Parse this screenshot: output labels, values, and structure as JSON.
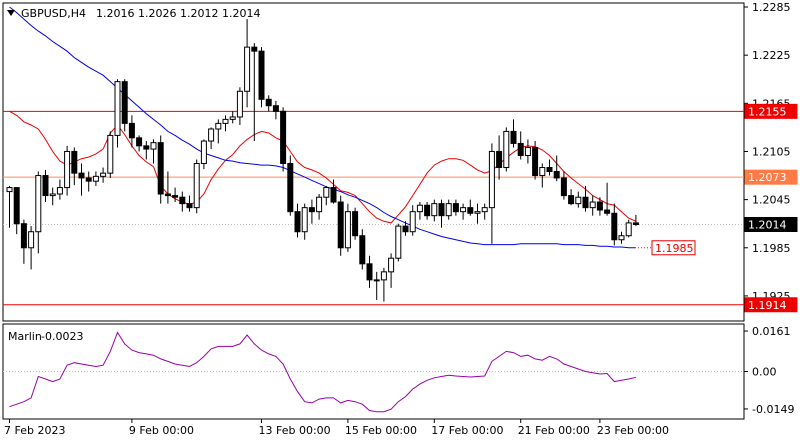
{
  "header": {
    "symbol": "GBPUSD,H4",
    "ohlc": "1.2016 1.2026 1.2012 1.2014",
    "menu_icon": "triangle-down-icon"
  },
  "chart_data": {
    "type": "candlestick",
    "symbol": "GBPUSD",
    "timeframe": "H4",
    "ylim": [
      1.1895,
      1.229
    ],
    "y_ticks": [
      "1.2285",
      "1.2225",
      "1.2165",
      "1.2105",
      "1.2045",
      "1.1985",
      "1.1925"
    ],
    "x_ticks": [
      "7 Feb 2023",
      "9 Feb 00:00",
      "13 Feb 00:00",
      "15 Feb 00:00",
      "17 Feb 00:00",
      "21 Feb 00:00",
      "23 Feb 00:00"
    ],
    "candles": [
      [
        1.2055,
        1.2062,
        1.201,
        1.206
      ],
      [
        1.206,
        1.2058,
        1.2002,
        1.2015
      ],
      [
        1.2015,
        1.202,
        1.1965,
        1.1985
      ],
      [
        1.1985,
        1.2012,
        1.1958,
        1.2005
      ],
      [
        1.2005,
        1.208,
        1.1978,
        1.2075
      ],
      [
        1.2075,
        1.2082,
        1.2042,
        1.205
      ],
      [
        1.205,
        1.206,
        1.2038,
        1.2052
      ],
      [
        1.2052,
        1.207,
        1.2045,
        1.206
      ],
      [
        1.206,
        1.2112,
        1.205,
        1.2105
      ],
      [
        1.2105,
        1.211,
        1.2063,
        1.2078
      ],
      [
        1.2078,
        1.209,
        1.205,
        1.2072
      ],
      [
        1.2072,
        1.208,
        1.2055,
        1.2068
      ],
      [
        1.2068,
        1.208,
        1.2062,
        1.2074
      ],
      [
        1.2074,
        1.2085,
        1.2066,
        1.2078
      ],
      [
        1.2078,
        1.213,
        1.2072,
        1.2125
      ],
      [
        1.2125,
        1.2195,
        1.211,
        1.2192
      ],
      [
        1.2192,
        1.2195,
        1.213,
        1.214
      ],
      [
        1.214,
        1.215,
        1.211,
        1.2122
      ],
      [
        1.2122,
        1.2125,
        1.2105,
        1.2112
      ],
      [
        1.2112,
        1.2118,
        1.2095,
        1.2108
      ],
      [
        1.2108,
        1.212,
        1.209,
        1.2116
      ],
      [
        1.2116,
        1.2125,
        1.204,
        1.2052
      ],
      [
        1.2052,
        1.208,
        1.204,
        1.205
      ],
      [
        1.205,
        1.206,
        1.2042,
        1.2048
      ],
      [
        1.2048,
        1.2055,
        1.203,
        1.204
      ],
      [
        1.204,
        1.205,
        1.203,
        1.2035
      ],
      [
        1.2035,
        1.2095,
        1.2028,
        1.209
      ],
      [
        1.209,
        1.212,
        1.2083,
        1.2118
      ],
      [
        1.2118,
        1.2135,
        1.2108,
        1.2133
      ],
      [
        1.2133,
        1.2145,
        1.2115,
        1.214
      ],
      [
        1.214,
        1.215,
        1.213,
        1.2145
      ],
      [
        1.2145,
        1.2155,
        1.214,
        1.2148
      ],
      [
        1.2148,
        1.2185,
        1.2138,
        1.218
      ],
      [
        1.218,
        1.227,
        1.216,
        1.2235
      ],
      [
        1.2235,
        1.224,
        1.2118,
        1.223
      ],
      [
        1.223,
        1.2235,
        1.216,
        1.217
      ],
      [
        1.217,
        1.2175,
        1.2155,
        1.2162
      ],
      [
        1.2162,
        1.2168,
        1.2145,
        1.2155
      ],
      [
        1.2155,
        1.216,
        1.208,
        1.209
      ],
      [
        1.209,
        1.21,
        1.2025,
        1.203
      ],
      [
        1.203,
        1.204,
        1.1998,
        1.2005
      ],
      [
        1.2005,
        1.204,
        1.1995,
        1.2035
      ],
      [
        1.2035,
        1.2045,
        1.2015,
        1.203
      ],
      [
        1.203,
        1.2052,
        1.202,
        1.2048
      ],
      [
        1.2048,
        1.2062,
        1.2038,
        1.206
      ],
      [
        1.206,
        1.207,
        1.204,
        1.2042
      ],
      [
        1.2042,
        1.205,
        1.1975,
        1.1985
      ],
      [
        1.1985,
        1.204,
        1.198,
        1.203
      ],
      [
        1.203,
        1.2035,
        1.1995,
        1.2
      ],
      [
        1.2,
        1.2008,
        1.1958,
        1.1965
      ],
      [
        1.1965,
        1.1975,
        1.1935,
        1.1945
      ],
      [
        1.1945,
        1.1955,
        1.192,
        1.1945
      ],
      [
        1.1945,
        1.196,
        1.1918,
        1.1955
      ],
      [
        1.1955,
        1.1978,
        1.1935,
        1.1972
      ],
      [
        1.1972,
        1.2015,
        1.1968,
        1.2012
      ],
      [
        1.2012,
        1.2018,
        1.2,
        1.2005
      ],
      [
        1.2005,
        1.2038,
        1.2,
        1.203
      ],
      [
        1.203,
        1.2042,
        1.202,
        1.2038
      ],
      [
        1.2038,
        1.2042,
        1.202,
        1.2025
      ],
      [
        1.2025,
        1.2045,
        1.2018,
        1.204
      ],
      [
        1.204,
        1.2045,
        1.201,
        1.2025
      ],
      [
        1.2025,
        1.2045,
        1.202,
        1.204
      ],
      [
        1.204,
        1.2045,
        1.2025,
        1.203
      ],
      [
        1.203,
        1.204,
        1.202,
        1.2035
      ],
      [
        1.2035,
        1.2045,
        1.2025,
        1.2028
      ],
      [
        1.2028,
        1.204,
        1.2015,
        1.203
      ],
      [
        1.203,
        1.204,
        1.202,
        1.2035
      ],
      [
        1.2035,
        1.2115,
        1.199,
        1.2105
      ],
      [
        1.2105,
        1.2125,
        1.207,
        1.2085
      ],
      [
        1.2085,
        1.2135,
        1.208,
        1.213
      ],
      [
        1.213,
        1.2145,
        1.211,
        1.2115
      ],
      [
        1.2115,
        1.213,
        1.2095,
        1.21
      ],
      [
        1.21,
        1.212,
        1.209,
        1.211
      ],
      [
        1.211,
        1.2118,
        1.207,
        1.2075
      ],
      [
        1.2075,
        1.209,
        1.206,
        1.2085
      ],
      [
        1.2085,
        1.2095,
        1.2075,
        1.208
      ],
      [
        1.208,
        1.21,
        1.2068,
        1.2072
      ],
      [
        1.2072,
        1.208,
        1.2045,
        1.205
      ],
      [
        1.205,
        1.2058,
        1.2038,
        1.204
      ],
      [
        1.204,
        1.2055,
        1.2035,
        1.2048
      ],
      [
        1.2048,
        1.2062,
        1.203,
        1.2035
      ],
      [
        1.2035,
        1.205,
        1.2025,
        1.2042
      ],
      [
        1.2042,
        1.2048,
        1.2025,
        1.2032
      ],
      [
        1.2032,
        1.2066,
        1.2025,
        1.2028
      ],
      [
        1.2028,
        1.204,
        1.1988,
        1.1995
      ],
      [
        1.1995,
        1.2005,
        1.199,
        1.2
      ],
      [
        1.2,
        1.202,
        1.1998,
        1.2016
      ],
      [
        1.2016,
        1.2026,
        1.2012,
        1.2014
      ]
    ],
    "moving_averages": [
      {
        "color": "#ee0000",
        "values": [
          1.2155,
          1.215,
          1.2142,
          1.2138,
          1.2133,
          1.212,
          1.2105,
          1.2093,
          1.2088,
          1.2092,
          1.2096,
          1.2098,
          1.2102,
          1.2108,
          1.2128,
          1.2138,
          1.2126,
          1.2112,
          1.21,
          1.2092,
          1.2086,
          1.2062,
          1.2052,
          1.2046,
          1.2042,
          1.2039,
          1.2042,
          1.2052,
          1.207,
          1.2083,
          1.2094,
          1.2101,
          1.2112,
          1.212,
          1.2126,
          1.213,
          1.2128,
          1.2122,
          1.2118,
          1.2105,
          1.2092,
          1.2085,
          1.2082,
          1.2078,
          1.2072,
          1.2064,
          1.2056,
          1.2054,
          1.205,
          1.204,
          1.203,
          1.2022,
          1.2018,
          1.2016,
          1.2026,
          1.2036,
          1.205,
          1.2064,
          1.2078,
          1.2088,
          1.2093,
          1.2096,
          1.2096,
          1.2094,
          1.2088,
          1.2082,
          1.2078,
          1.2081,
          1.2089,
          1.2097,
          1.2104,
          1.211,
          1.2112,
          1.2111,
          1.2107,
          1.21,
          1.209,
          1.208,
          1.2072,
          1.2065,
          1.2058,
          1.205,
          1.2045,
          1.204,
          1.2038,
          1.203,
          1.2022,
          1.2018
        ]
      },
      {
        "color": "#0000ee",
        "values": [
          1.2285,
          1.2278,
          1.227,
          1.2262,
          1.2255,
          1.2249,
          1.2242,
          1.2236,
          1.223,
          1.2222,
          1.2216,
          1.221,
          1.2205,
          1.22,
          1.2192,
          1.2184,
          1.2176,
          1.2168,
          1.216,
          1.2152,
          1.2145,
          1.2138,
          1.213,
          1.2125,
          1.2119,
          1.2114,
          1.2108,
          1.2103,
          1.21,
          1.2097,
          1.2094,
          1.2093,
          1.2091,
          1.209,
          1.2089,
          1.2088,
          1.2088,
          1.2087,
          1.2085,
          1.2081,
          1.2077,
          1.2073,
          1.2069,
          1.2065,
          1.2061,
          1.2058,
          1.2055,
          1.2051,
          1.2048,
          1.2044,
          1.204,
          1.2035,
          1.2029,
          1.2024,
          1.202,
          1.2016,
          1.2012,
          1.2008,
          1.2005,
          1.2002,
          1.1999,
          1.1997,
          1.1995,
          1.1993,
          1.1991,
          1.199,
          1.1989,
          1.1989,
          1.1989,
          1.1989,
          1.1989,
          1.199,
          1.199,
          1.199,
          1.199,
          1.199,
          1.199,
          1.1989,
          1.1989,
          1.1989,
          1.1988,
          1.1988,
          1.1987,
          1.1987,
          1.1986,
          1.1986,
          1.1985,
          1.1985
        ]
      }
    ],
    "horizontal_lines": [
      {
        "value": 1.2155,
        "label": "1.2155",
        "color": "#ee0000"
      },
      {
        "value": 1.2073,
        "label": "1.2073",
        "color": "#ff8c5a"
      },
      {
        "value": 1.1914,
        "label": "1.1914",
        "color": "#ee0000"
      }
    ],
    "current_price": {
      "value": 1.2014,
      "label": "1.2014"
    },
    "ma_label": {
      "value": 1.1985,
      "label": "1.1985"
    },
    "oscillator": {
      "name": "Marlin",
      "value_label": "-0.0023",
      "ylim": [
        -0.0185,
        0.0185
      ],
      "y_ticks": [
        "0.0161",
        "0.00",
        "-0.0149"
      ],
      "color": "#9900aa",
      "values": [
        -0.014,
        -0.013,
        -0.012,
        -0.0105,
        -0.002,
        -0.003,
        -0.004,
        -0.003,
        0.0025,
        0.0035,
        0.003,
        0.0025,
        0.002,
        0.0025,
        0.008,
        0.0155,
        0.011,
        0.0085,
        0.0075,
        0.007,
        0.0065,
        0.005,
        0.004,
        0.003,
        0.0025,
        0.002,
        0.0035,
        0.006,
        0.009,
        0.01,
        0.01,
        0.01,
        0.011,
        0.0145,
        0.011,
        0.0085,
        0.007,
        0.006,
        0.003,
        -0.003,
        -0.008,
        -0.012,
        -0.0125,
        -0.011,
        -0.0105,
        -0.0105,
        -0.0125,
        -0.0115,
        -0.012,
        -0.013,
        -0.0155,
        -0.016,
        -0.016,
        -0.015,
        -0.012,
        -0.01,
        -0.007,
        -0.005,
        -0.0035,
        -0.0025,
        -0.002,
        -0.0015,
        -0.0018,
        -0.002,
        -0.0022,
        -0.002,
        -0.0018,
        0.004,
        0.006,
        0.008,
        0.0075,
        0.006,
        0.0065,
        0.005,
        0.0045,
        0.006,
        0.005,
        0.003,
        0.002,
        0.001,
        0.0,
        -0.0005,
        -0.001,
        -0.0008,
        -0.004,
        -0.0035,
        -0.003,
        -0.0023
      ]
    }
  }
}
